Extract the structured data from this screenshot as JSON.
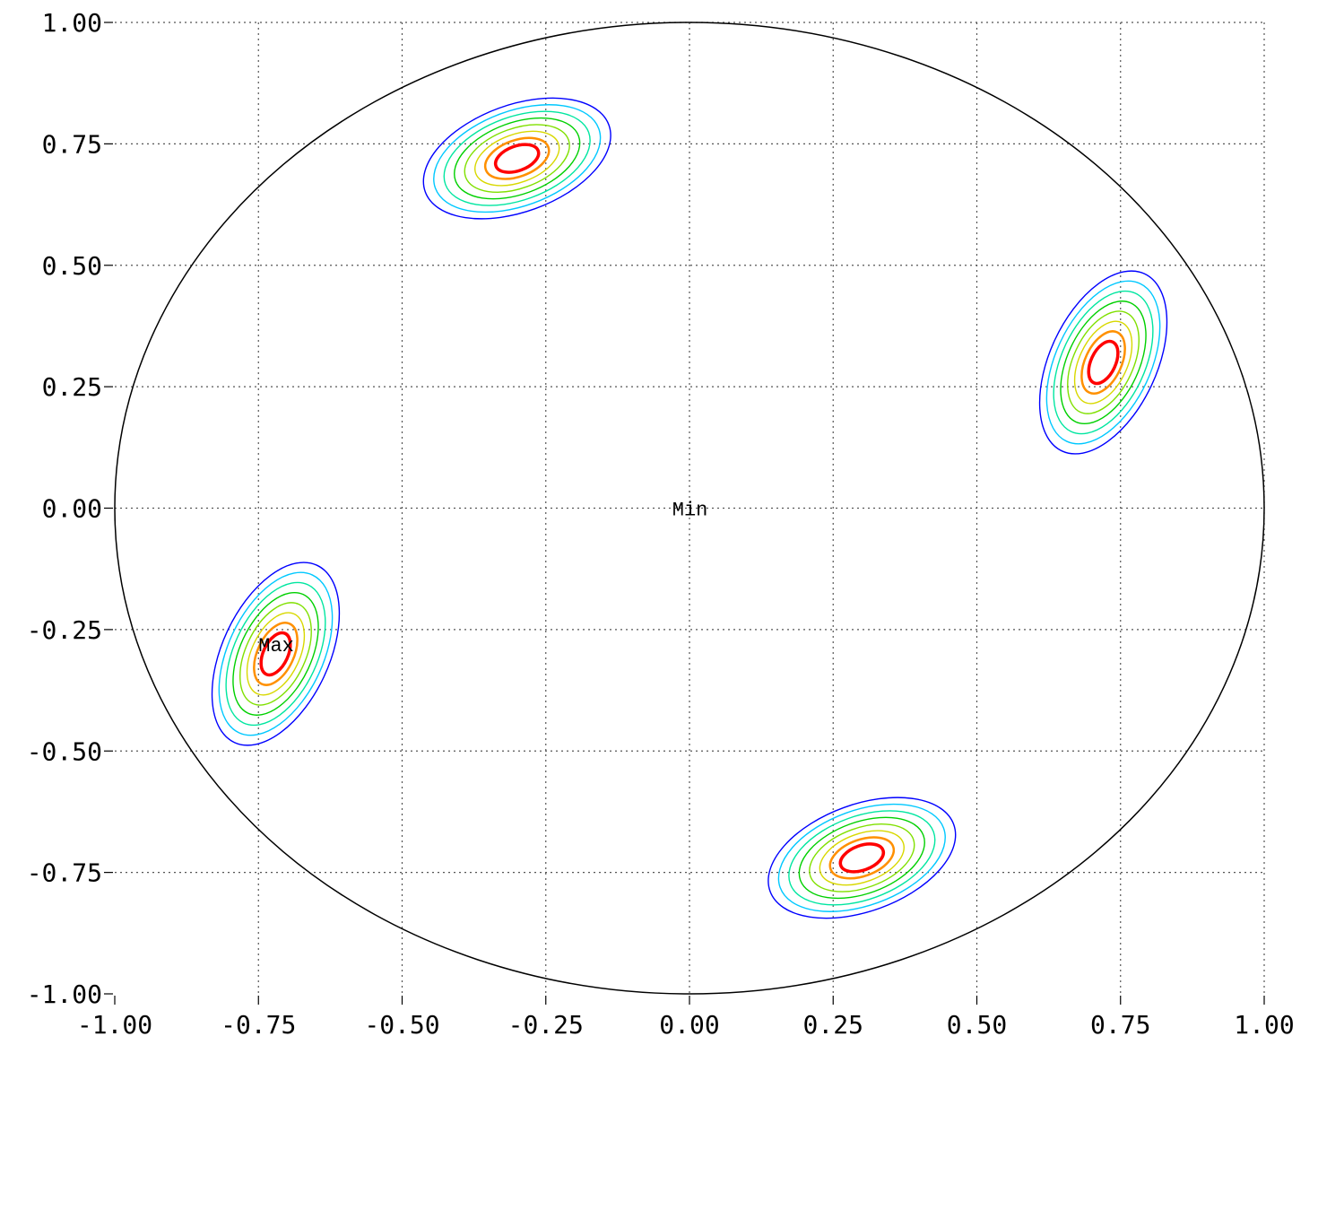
{
  "chart_data": {
    "type": "contour",
    "title": "",
    "xlabel": "",
    "ylabel": "",
    "xlim": [
      -1.0,
      1.0
    ],
    "ylim": [
      -1.0,
      1.0
    ],
    "grid": true,
    "x_ticks": [
      "-1.00",
      "-0.75",
      "-0.50",
      "-0.25",
      "0.00",
      "0.25",
      "0.50",
      "0.75",
      "1.00"
    ],
    "y_ticks": [
      "1.00",
      "0.75",
      "0.50",
      "0.25",
      "0.00",
      "-0.25",
      "-0.50",
      "-0.75",
      "-1.00"
    ],
    "boundary": {
      "shape": "circle",
      "center": [
        0.0,
        0.0
      ],
      "radius": 1.0
    },
    "level_colors": [
      "#0000ff",
      "#00c8ff",
      "#00e6a0",
      "#00d000",
      "#80e000",
      "#d8d800",
      "#ff9000",
      "#ff0000"
    ],
    "peaks": [
      {
        "center": [
          -0.3,
          0.72
        ],
        "rx": 0.17,
        "ry": 0.11,
        "rotation_deg": 20
      },
      {
        "center": [
          0.72,
          0.3
        ],
        "rx": 0.17,
        "ry": 0.11,
        "rotation_deg": 65
      },
      {
        "center": [
          -0.72,
          -0.3
        ],
        "rx": 0.17,
        "ry": 0.11,
        "rotation_deg": 65
      },
      {
        "center": [
          0.3,
          -0.72
        ],
        "rx": 0.17,
        "ry": 0.11,
        "rotation_deg": 20
      }
    ],
    "annotations": [
      {
        "text": "Max",
        "x": -0.75,
        "y": -0.28
      },
      {
        "text": "Min",
        "x": -0.03,
        "y": 0.0
      }
    ]
  }
}
